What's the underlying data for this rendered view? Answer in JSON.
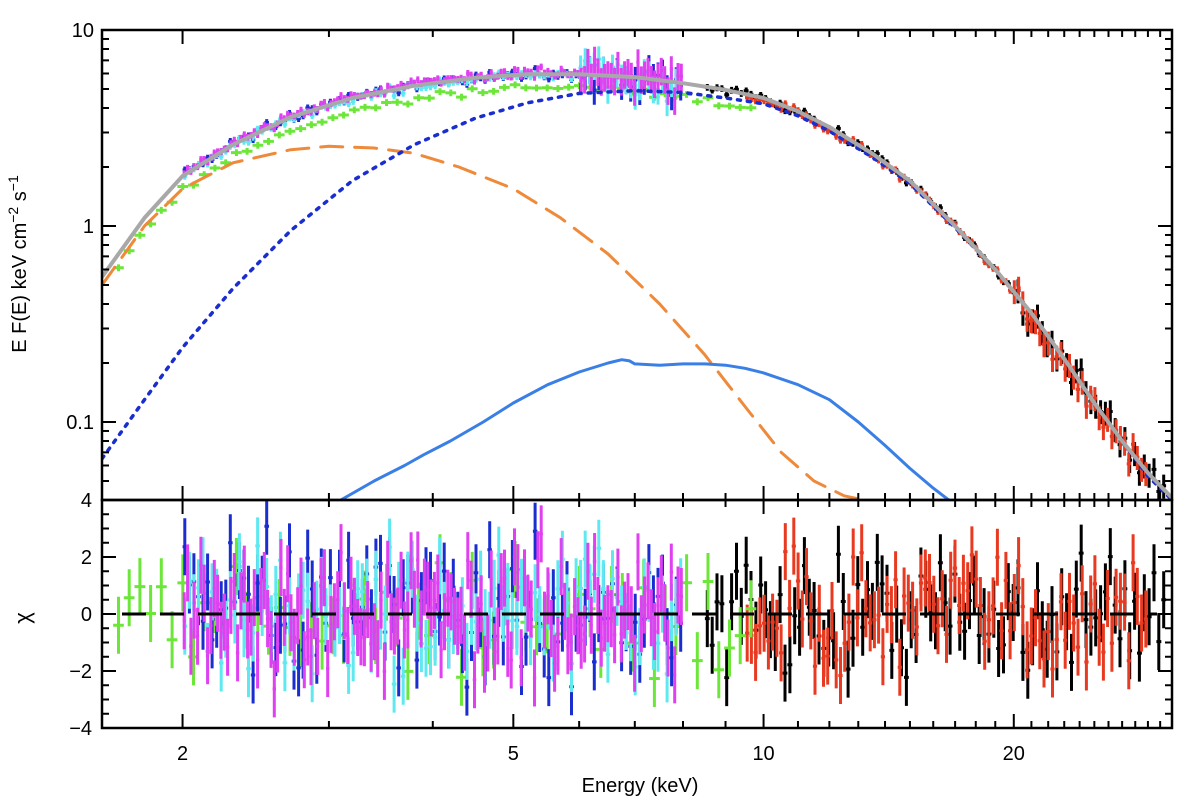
{
  "chart_data": [
    {
      "panel": "top",
      "type": "line",
      "xscale": "log",
      "yscale": "log",
      "xlim": [
        1.6,
        31
      ],
      "ylim": [
        0.04,
        10
      ],
      "xlabel": "",
      "ylabel_main": "E F(E) keV cm",
      "ylabel_sup1": "−2",
      "ylabel_mid": " s",
      "ylabel_sup2": "−1",
      "y_ticks": [
        {
          "value": 10,
          "label": "10"
        },
        {
          "value": 1,
          "label": "1"
        },
        {
          "value": 0.1,
          "label": "0.1"
        }
      ],
      "series": [
        {
          "name": "total model",
          "style": "solid",
          "color": "#a8a8a8",
          "x": [
            1.6,
            1.8,
            2.0,
            2.3,
            2.7,
            3.2,
            3.8,
            4.5,
            5.2,
            6.0,
            7.0,
            8.0,
            9.0,
            10,
            11,
            12,
            13.5,
            15,
            17,
            19,
            21,
            23,
            25,
            27,
            29,
            31
          ],
          "y": [
            0.55,
            1.1,
            1.8,
            2.6,
            3.6,
            4.5,
            5.2,
            5.7,
            5.95,
            5.95,
            5.75,
            5.35,
            4.95,
            4.5,
            3.85,
            3.2,
            2.35,
            1.7,
            1.0,
            0.6,
            0.36,
            0.21,
            0.125,
            0.08,
            0.055,
            0.041
          ]
        },
        {
          "name": "soft component",
          "style": "dashed",
          "color": "#ee8a3a",
          "x": [
            1.6,
            1.8,
            2.0,
            2.3,
            2.7,
            3.0,
            3.4,
            3.8,
            4.3,
            5.0,
            5.7,
            6.5,
            7.5,
            8.5,
            9.5,
            10.5,
            11.5,
            12.5,
            13.2
          ],
          "y": [
            0.5,
            1.0,
            1.55,
            2.1,
            2.45,
            2.55,
            2.5,
            2.35,
            2.0,
            1.55,
            1.1,
            0.72,
            0.4,
            0.22,
            0.12,
            0.07,
            0.05,
            0.042,
            0.04
          ]
        },
        {
          "name": "hard component",
          "style": "dotted",
          "color": "#1a2ed0",
          "x": [
            1.6,
            1.8,
            2.0,
            2.3,
            2.7,
            3.2,
            3.8,
            4.5,
            5.2,
            6.0,
            7.0,
            8.0,
            9.0,
            10,
            11,
            12,
            13.5,
            15,
            17,
            19,
            21,
            23,
            25,
            27,
            29,
            31
          ],
          "y": [
            0.065,
            0.13,
            0.24,
            0.48,
            0.95,
            1.7,
            2.6,
            3.55,
            4.25,
            4.75,
            4.9,
            4.8,
            4.5,
            4.2,
            3.65,
            3.05,
            2.25,
            1.65,
            0.98,
            0.6,
            0.36,
            0.21,
            0.125,
            0.08,
            0.053,
            0.04
          ]
        },
        {
          "name": "reflection component",
          "style": "solid",
          "color": "#3a7fe6",
          "x": [
            3.1,
            3.4,
            3.7,
            3.9,
            4.2,
            4.6,
            5.0,
            5.5,
            6.0,
            6.5,
            6.75,
            6.9,
            7.0,
            7.5,
            8.0,
            8.5,
            9.0,
            9.5,
            10,
            11,
            12,
            13,
            14,
            15,
            16,
            16.7
          ],
          "y": [
            0.04,
            0.05,
            0.06,
            0.068,
            0.08,
            0.1,
            0.125,
            0.155,
            0.18,
            0.2,
            0.208,
            0.205,
            0.198,
            0.195,
            0.198,
            0.198,
            0.195,
            0.188,
            0.178,
            0.155,
            0.13,
            0.1,
            0.076,
            0.058,
            0.046,
            0.04
          ]
        },
        {
          "name": "green data",
          "style": "points",
          "color": "#6de63a",
          "x_range": [
            1.65,
            9.8
          ]
        },
        {
          "name": "magenta data",
          "style": "points",
          "color": "#e040f0",
          "x_range": [
            2.0,
            8.0
          ]
        },
        {
          "name": "cyan data",
          "style": "points",
          "color": "#5ee8f0",
          "x_range": [
            2.0,
            8.0
          ]
        },
        {
          "name": "blue data",
          "style": "points",
          "color": "#1a2ed0",
          "x_range": [
            2.0,
            8.0
          ]
        },
        {
          "name": "black data",
          "style": "points",
          "color": "#000000",
          "x_range": [
            8.5,
            30.5
          ]
        },
        {
          "name": "red data",
          "style": "points",
          "color": "#e83a20",
          "x_range": [
            9.5,
            29
          ]
        }
      ]
    },
    {
      "panel": "bottom",
      "type": "scatter",
      "xscale": "log",
      "xlim": [
        1.6,
        31
      ],
      "ylim": [
        -4,
        4
      ],
      "xlabel": "Energy (keV)",
      "ylabel": "χ",
      "x_ticks": [
        {
          "value": 2,
          "label": "2"
        },
        {
          "value": 5,
          "label": "5"
        },
        {
          "value": 10,
          "label": "10"
        },
        {
          "value": 20,
          "label": "20"
        }
      ],
      "y_ticks": [
        {
          "value": 4,
          "label": "4"
        },
        {
          "value": 2,
          "label": "2"
        },
        {
          "value": 0,
          "label": "0"
        },
        {
          "value": -2,
          "label": "−2"
        },
        {
          "value": -4,
          "label": "−4"
        }
      ],
      "reference_line": {
        "y": 0,
        "style": "dashed",
        "color": "#000000"
      },
      "series": [
        {
          "name": "green residuals",
          "color": "#6de63a",
          "x_range": [
            1.65,
            9.8
          ]
        },
        {
          "name": "magenta residuals",
          "color": "#e040f0",
          "x_range": [
            2.0,
            8.0
          ]
        },
        {
          "name": "cyan residuals",
          "color": "#5ee8f0",
          "x_range": [
            2.0,
            8.0
          ]
        },
        {
          "name": "blue residuals",
          "color": "#1a2ed0",
          "x_range": [
            2.0,
            8.0
          ]
        },
        {
          "name": "black residuals",
          "color": "#000000",
          "x_range": [
            8.5,
            30.5
          ]
        },
        {
          "name": "red residuals",
          "color": "#e83a20",
          "x_range": [
            9.5,
            29
          ]
        }
      ]
    }
  ]
}
